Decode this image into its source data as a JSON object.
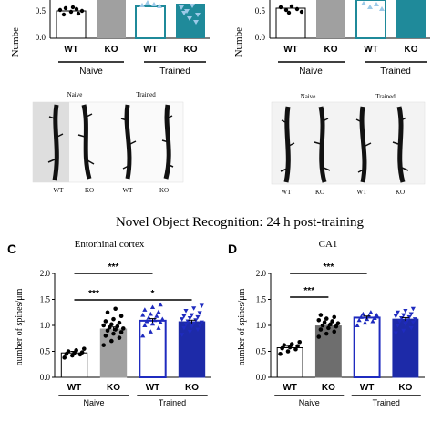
{
  "figure": {
    "heading": "Novel Object Recognition: 24 h post-training"
  },
  "top_row": {
    "groups": [
      "WT",
      "KO",
      "WT",
      "KO"
    ],
    "group_labels": [
      "Naive",
      "Trained"
    ],
    "left": {
      "ylabel_fragment": "Numbe",
      "ticks": [
        "0.5",
        "0.0"
      ]
    },
    "right": {
      "ylabel_fragment": "Numbe",
      "ticks": [
        "0.5",
        "0.0"
      ]
    }
  },
  "micrographs": {
    "left": {
      "naive": "Naive",
      "trained": "Trained",
      "labels": [
        "WT",
        "KO",
        "WT",
        "KO"
      ]
    },
    "right": {
      "naive": "Naive",
      "trained": "Trained",
      "labels": [
        "WT",
        "KO",
        "WT",
        "KO"
      ]
    }
  },
  "colors": {
    "wt_naive": "#ffffff",
    "ko_naive": "#a0a0a0",
    "ko_naive_D": "#6e6e6e",
    "wt_trained_edge": "#1f2bbf",
    "ko_trained": "#1d2aa8",
    "top_teal": "#1f8a9a",
    "top_light_blue": "#9cc9e8",
    "dots": "#000000"
  },
  "chart_data": [
    {
      "panel": "C",
      "type": "bar",
      "title": "Entorhinal cortex",
      "ylabel": "number of spines/μm",
      "ylim": [
        0,
        2.0
      ],
      "yticks": [
        "0.0",
        "0.5",
        "1.0",
        "1.5",
        "2.0"
      ],
      "categories": [
        "WT",
        "KO",
        "WT",
        "KO"
      ],
      "group_labels": [
        "Naive",
        "Trained"
      ],
      "values": [
        0.47,
        0.93,
        1.09,
        1.07
      ],
      "errors": [
        0.03,
        0.04,
        0.04,
        0.03
      ],
      "points": [
        [
          0.38,
          0.42,
          0.44,
          0.45,
          0.47,
          0.48,
          0.5,
          0.52,
          0.55
        ],
        [
          0.62,
          0.7,
          0.76,
          0.8,
          0.84,
          0.87,
          0.9,
          0.92,
          0.94,
          0.96,
          0.98,
          1.0,
          1.02,
          1.05,
          1.08,
          1.12,
          1.18,
          1.25,
          1.32
        ],
        [
          0.8,
          0.88,
          0.95,
          1.0,
          1.03,
          1.06,
          1.08,
          1.1,
          1.12,
          1.15,
          1.18,
          1.2,
          1.22,
          1.26,
          1.3,
          1.35,
          1.4
        ],
        [
          0.82,
          0.88,
          0.92,
          0.95,
          0.98,
          1.0,
          1.02,
          1.04,
          1.06,
          1.08,
          1.1,
          1.12,
          1.14,
          1.16,
          1.18,
          1.2,
          1.24,
          1.28,
          1.33,
          1.38
        ]
      ],
      "significance": [
        {
          "from": 0,
          "to": 2,
          "label": "***"
        },
        {
          "from": 0,
          "to": 1,
          "label": "***"
        },
        {
          "from": 1,
          "to": 3,
          "label": "*"
        }
      ]
    },
    {
      "panel": "D",
      "type": "bar",
      "title": "CA1",
      "ylabel": "number of spines/μm",
      "ylim": [
        0,
        2.0
      ],
      "yticks": [
        "0.0",
        "0.5",
        "1.0",
        "1.5",
        "2.0"
      ],
      "categories": [
        "WT",
        "KO",
        "WT",
        "KO"
      ],
      "group_labels": [
        "Naive",
        "Trained"
      ],
      "values": [
        0.57,
        0.99,
        1.15,
        1.12
      ],
      "errors": [
        0.03,
        0.03,
        0.03,
        0.03
      ],
      "points": [
        [
          0.45,
          0.5,
          0.54,
          0.56,
          0.58,
          0.6,
          0.62,
          0.64,
          0.68
        ],
        [
          0.78,
          0.84,
          0.88,
          0.92,
          0.95,
          0.98,
          1.0,
          1.02,
          1.04,
          1.06,
          1.08,
          1.1,
          1.13,
          1.16,
          1.2
        ],
        [
          1.0,
          1.05,
          1.08,
          1.1,
          1.12,
          1.14,
          1.16,
          1.18,
          1.2,
          1.22,
          1.25
        ],
        [
          0.85,
          0.9,
          0.95,
          1.0,
          1.03,
          1.06,
          1.08,
          1.1,
          1.12,
          1.14,
          1.16,
          1.18,
          1.2,
          1.22,
          1.25,
          1.28,
          1.32
        ]
      ],
      "significance": [
        {
          "from": 0,
          "to": 2,
          "label": "***"
        },
        {
          "from": 0,
          "to": 1,
          "label": "***"
        }
      ]
    }
  ]
}
